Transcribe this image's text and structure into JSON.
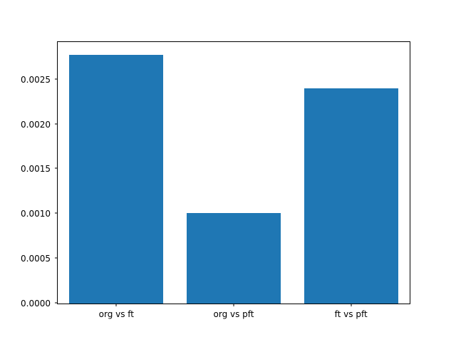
{
  "chart_data": {
    "type": "bar",
    "title": "",
    "xlabel": "",
    "ylabel": "",
    "categories": [
      "org vs ft",
      "org vs pft",
      "ft vs pft"
    ],
    "values": [
      0.00278,
      0.00101,
      0.0024
    ],
    "ylim": [
      0,
      0.00292
    ],
    "yticks": [
      {
        "value": 0.0,
        "label": "0.0000"
      },
      {
        "value": 0.0005,
        "label": "0.0005"
      },
      {
        "value": 0.001,
        "label": "0.0010"
      },
      {
        "value": 0.0015,
        "label": "0.0015"
      },
      {
        "value": 0.002,
        "label": "0.0020"
      },
      {
        "value": 0.0025,
        "label": "0.0025"
      }
    ],
    "bar_color": "#1f77b4",
    "bar_width_fraction": 0.8,
    "grid": false,
    "legend": false,
    "background_color": "#ffffff",
    "frame_color": "#000000"
  }
}
